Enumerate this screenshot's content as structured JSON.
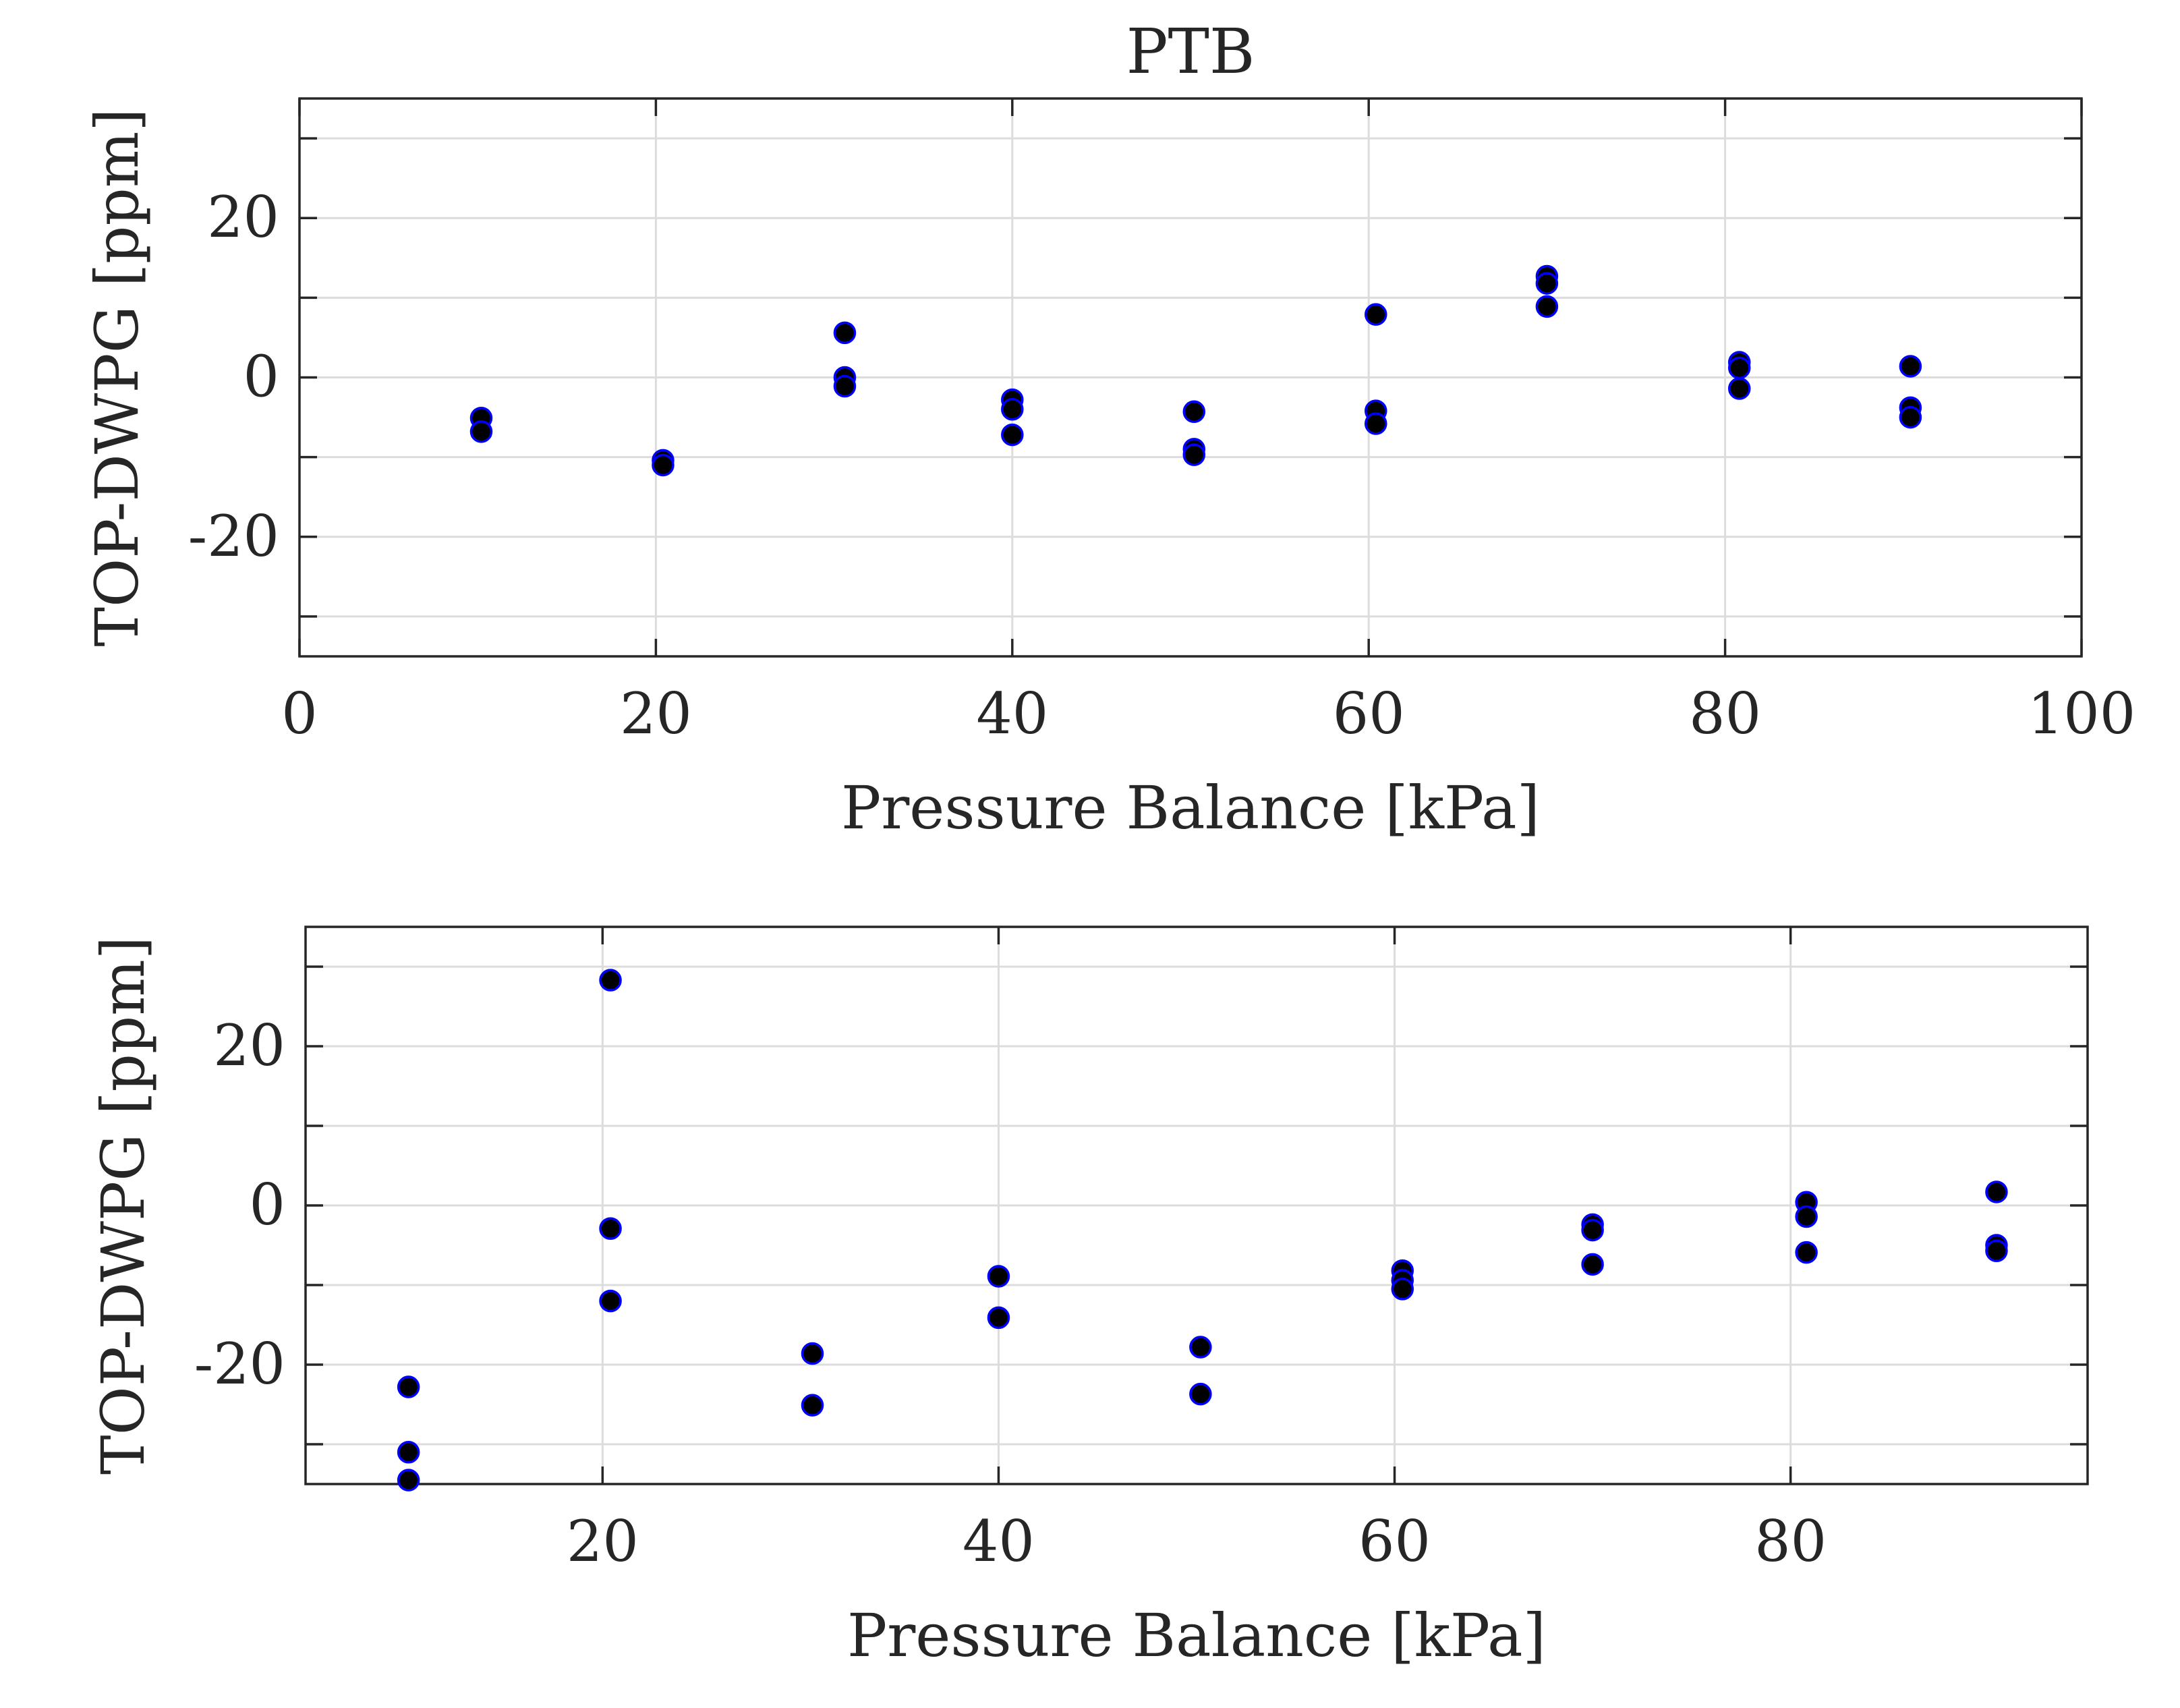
{
  "chart_data": [
    {
      "type": "scatter",
      "title": "PTB",
      "xlabel": "Pressure Balance [kPa]",
      "ylabel": "TOP-DWPG [ppm]",
      "xlim": [
        0,
        100
      ],
      "ylim": [
        -35,
        35
      ],
      "xticks": [
        0,
        20,
        40,
        60,
        80,
        100
      ],
      "yticks": [
        -20,
        0,
        20
      ],
      "grid": true,
      "marker_face": "#000000",
      "marker_edge": "#0000ff",
      "points": [
        {
          "x": 10.2,
          "y": -5.1
        },
        {
          "x": 10.2,
          "y": -6.8
        },
        {
          "x": 20.4,
          "y": -10.4
        },
        {
          "x": 20.4,
          "y": -11.0
        },
        {
          "x": 30.6,
          "y": 5.6
        },
        {
          "x": 30.6,
          "y": 0.0
        },
        {
          "x": 30.6,
          "y": -1.1
        },
        {
          "x": 40.0,
          "y": -2.8
        },
        {
          "x": 40.0,
          "y": -4.0
        },
        {
          "x": 40.0,
          "y": -7.2
        },
        {
          "x": 50.2,
          "y": -4.3
        },
        {
          "x": 50.2,
          "y": -9.0
        },
        {
          "x": 50.2,
          "y": -9.7
        },
        {
          "x": 60.4,
          "y": 7.9
        },
        {
          "x": 60.4,
          "y": -4.2
        },
        {
          "x": 60.4,
          "y": -5.8
        },
        {
          "x": 70.0,
          "y": 12.7
        },
        {
          "x": 70.0,
          "y": 11.8
        },
        {
          "x": 70.0,
          "y": 8.9
        },
        {
          "x": 80.8,
          "y": 1.9
        },
        {
          "x": 80.8,
          "y": 1.2
        },
        {
          "x": 80.8,
          "y": -1.4
        },
        {
          "x": 90.4,
          "y": 1.4
        },
        {
          "x": 90.4,
          "y": -3.8
        },
        {
          "x": 90.4,
          "y": -5.0
        }
      ]
    },
    {
      "type": "scatter",
      "title": "",
      "xlabel": "Pressure Balance [kPa]",
      "ylabel": "TOP-DWPG [ppm]",
      "xlim": [
        5,
        95
      ],
      "ylim": [
        -35,
        35
      ],
      "xticks": [
        20,
        40,
        60,
        80
      ],
      "yticks": [
        -20,
        0,
        20
      ],
      "grid": true,
      "marker_face": "#000000",
      "marker_edge": "#0000ff",
      "points": [
        {
          "x": 10.2,
          "y": -22.8
        },
        {
          "x": 10.2,
          "y": -31.0
        },
        {
          "x": 10.2,
          "y": -34.5
        },
        {
          "x": 20.4,
          "y": 28.3
        },
        {
          "x": 20.4,
          "y": -2.9
        },
        {
          "x": 20.4,
          "y": -12.0
        },
        {
          "x": 30.6,
          "y": -18.6
        },
        {
          "x": 30.6,
          "y": -25.1
        },
        {
          "x": 40.0,
          "y": -8.9
        },
        {
          "x": 40.0,
          "y": -14.1
        },
        {
          "x": 50.2,
          "y": -17.8
        },
        {
          "x": 50.2,
          "y": -23.7
        },
        {
          "x": 60.4,
          "y": -8.2
        },
        {
          "x": 60.4,
          "y": -9.4
        },
        {
          "x": 60.4,
          "y": -10.5
        },
        {
          "x": 70.0,
          "y": -2.4
        },
        {
          "x": 70.0,
          "y": -3.1
        },
        {
          "x": 70.0,
          "y": -7.4
        },
        {
          "x": 80.8,
          "y": 0.4
        },
        {
          "x": 80.8,
          "y": -1.4
        },
        {
          "x": 80.8,
          "y": -5.9
        },
        {
          "x": 90.4,
          "y": 1.7
        },
        {
          "x": 90.4,
          "y": -5.0
        },
        {
          "x": 90.4,
          "y": -5.7
        }
      ]
    }
  ]
}
